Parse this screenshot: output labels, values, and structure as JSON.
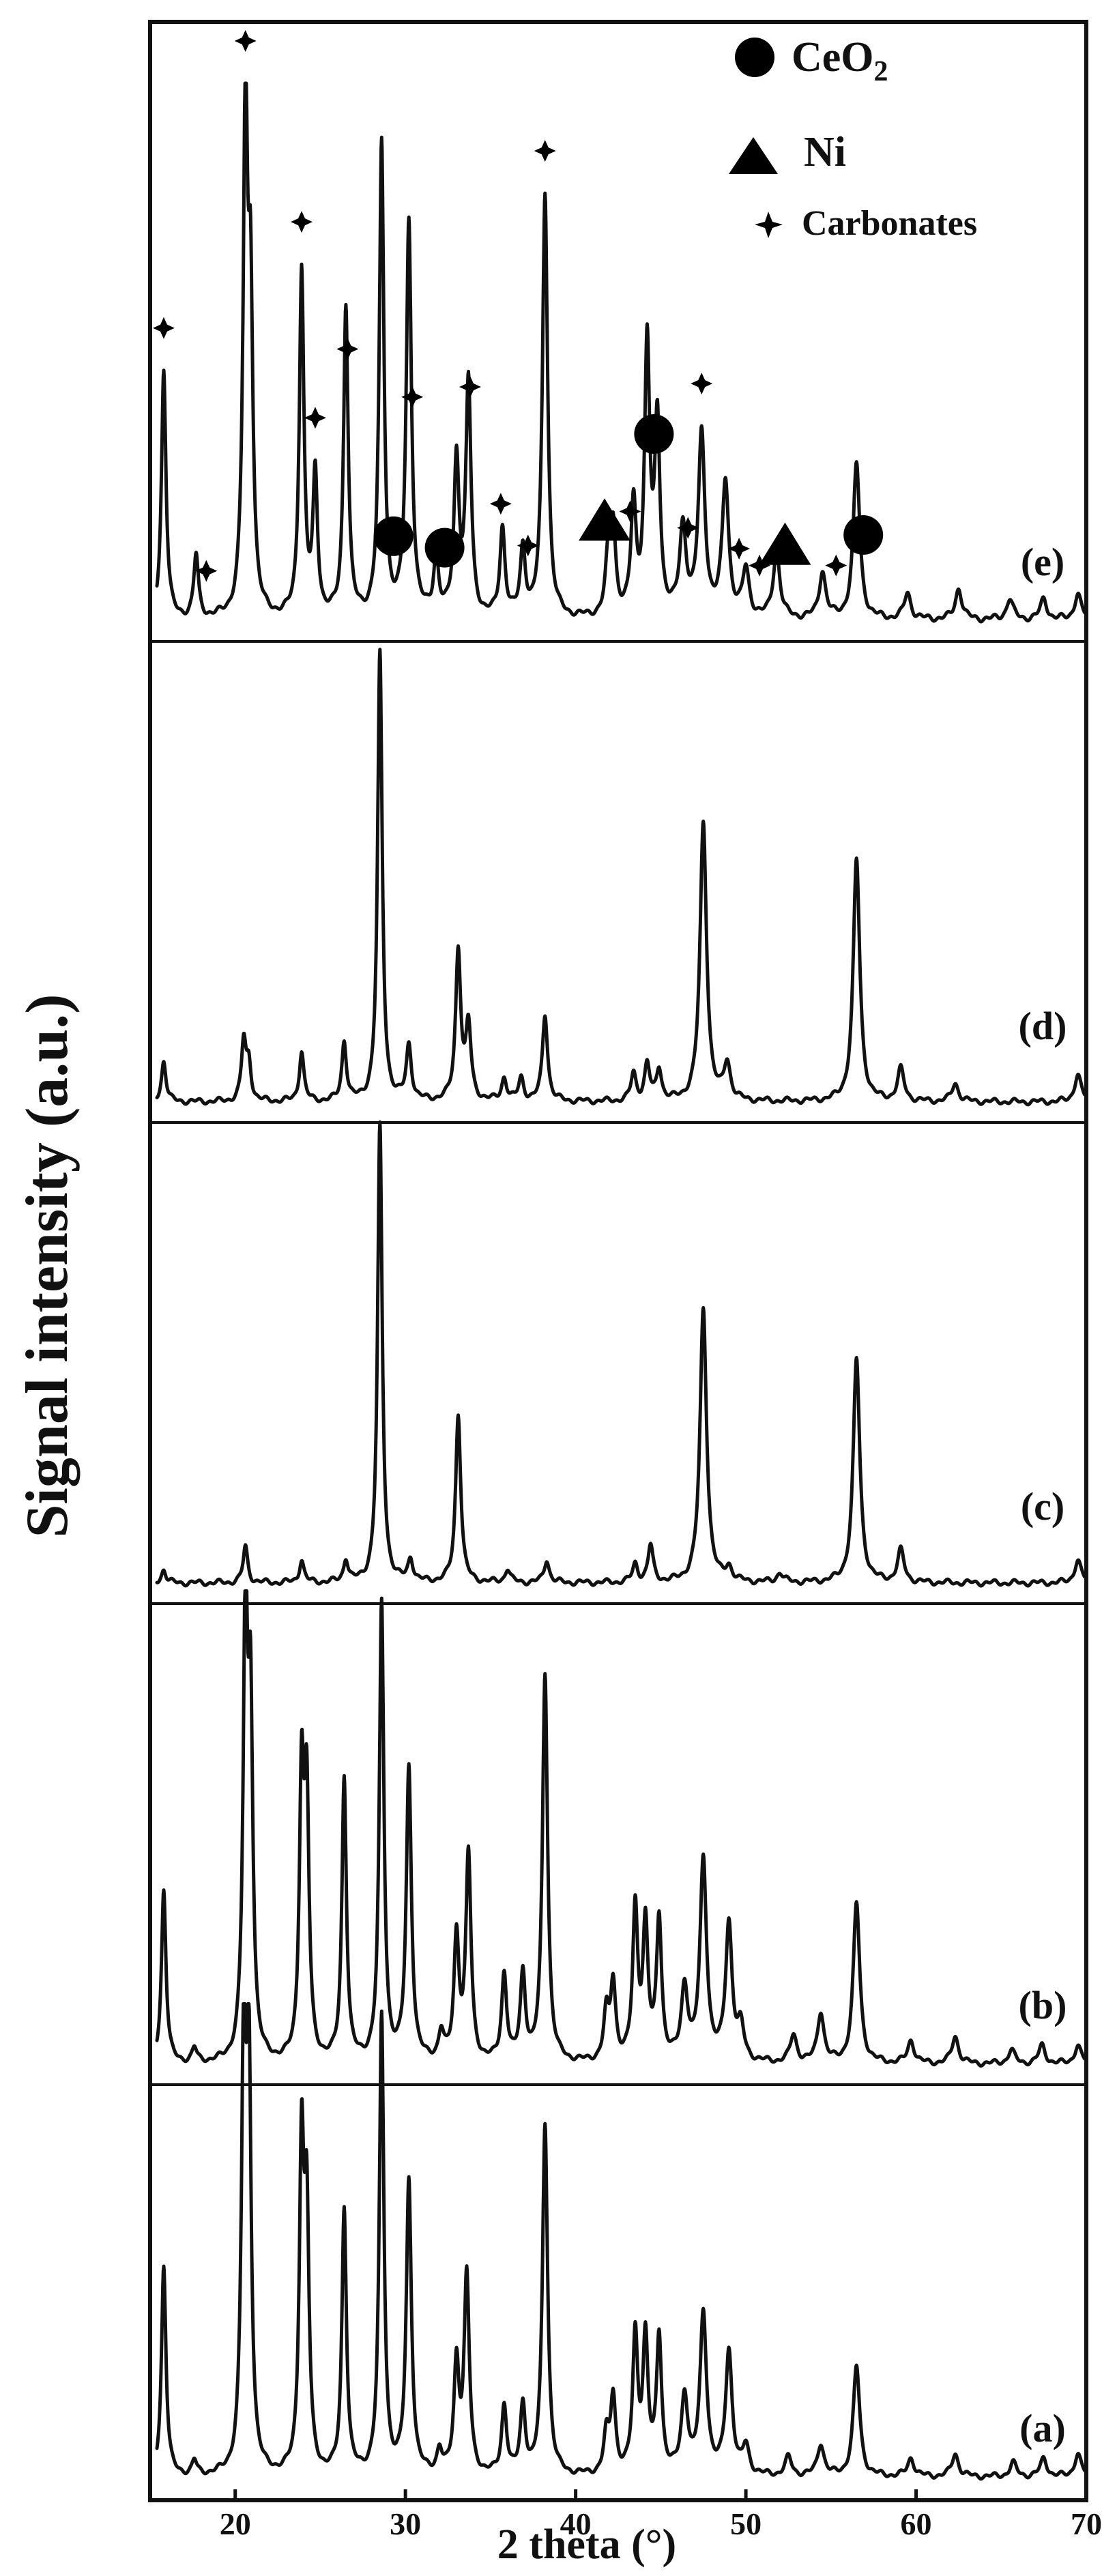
{
  "chart_data": {
    "type": "line",
    "title": "",
    "xlabel": "2 theta (°)",
    "ylabel": "Signal intensity (a.u.)",
    "xlim": [
      15,
      70
    ],
    "x_ticks": [
      20,
      30,
      40,
      50,
      60,
      70
    ],
    "y_units": "a.u.",
    "grid": false,
    "legend": {
      "placement": "top-right",
      "entries": [
        {
          "marker": "circle",
          "label": "CeO2"
        },
        {
          "marker": "triangle",
          "label": "Ni"
        },
        {
          "marker": "star",
          "label": "Carbonates"
        }
      ]
    },
    "panels": [
      {
        "label": "(e)",
        "annotation_positions": {
          "circle": [
            29.3,
            32.3,
            44.6,
            56.9
          ],
          "triangle": [
            41.7,
            52.3
          ],
          "star": [
            15.8,
            18.3,
            20.6,
            23.9,
            24.7,
            26.6,
            30.4,
            33.8,
            35.6,
            37.2,
            38.2,
            43.2,
            46.6,
            47.4,
            49.6,
            50.8,
            55.3
          ]
        },
        "peaks": [
          {
            "x": 15.8,
            "y": 0.48
          },
          {
            "x": 17.7,
            "y": 0.12
          },
          {
            "x": 20.6,
            "y": 0.96
          },
          {
            "x": 20.9,
            "y": 0.57
          },
          {
            "x": 23.9,
            "y": 0.67
          },
          {
            "x": 24.7,
            "y": 0.27
          },
          {
            "x": 26.5,
            "y": 0.6
          },
          {
            "x": 28.6,
            "y": 0.91
          },
          {
            "x": 30.2,
            "y": 0.76
          },
          {
            "x": 31.8,
            "y": 0.11
          },
          {
            "x": 33.0,
            "y": 0.3
          },
          {
            "x": 33.7,
            "y": 0.45
          },
          {
            "x": 35.7,
            "y": 0.17
          },
          {
            "x": 36.9,
            "y": 0.13
          },
          {
            "x": 38.2,
            "y": 0.82
          },
          {
            "x": 41.9,
            "y": 0.1
          },
          {
            "x": 42.2,
            "y": 0.17
          },
          {
            "x": 43.4,
            "y": 0.21
          },
          {
            "x": 44.2,
            "y": 0.52
          },
          {
            "x": 44.8,
            "y": 0.37
          },
          {
            "x": 46.3,
            "y": 0.17
          },
          {
            "x": 47.4,
            "y": 0.35
          },
          {
            "x": 48.8,
            "y": 0.26
          },
          {
            "x": 50.0,
            "y": 0.09
          },
          {
            "x": 51.8,
            "y": 0.13
          },
          {
            "x": 54.5,
            "y": 0.09
          },
          {
            "x": 56.5,
            "y": 0.3
          },
          {
            "x": 59.5,
            "y": 0.05
          },
          {
            "x": 62.5,
            "y": 0.06
          },
          {
            "x": 65.5,
            "y": 0.04
          },
          {
            "x": 67.5,
            "y": 0.04
          },
          {
            "x": 69.5,
            "y": 0.05
          }
        ]
      },
      {
        "label": "(d)",
        "peaks": [
          {
            "x": 15.8,
            "y": 0.09
          },
          {
            "x": 20.5,
            "y": 0.13
          },
          {
            "x": 20.8,
            "y": 0.08
          },
          {
            "x": 23.9,
            "y": 0.11
          },
          {
            "x": 26.4,
            "y": 0.13
          },
          {
            "x": 28.5,
            "y": 0.98
          },
          {
            "x": 30.2,
            "y": 0.12
          },
          {
            "x": 33.1,
            "y": 0.33
          },
          {
            "x": 33.7,
            "y": 0.16
          },
          {
            "x": 35.8,
            "y": 0.05
          },
          {
            "x": 36.8,
            "y": 0.05
          },
          {
            "x": 38.2,
            "y": 0.19
          },
          {
            "x": 43.4,
            "y": 0.06
          },
          {
            "x": 44.2,
            "y": 0.08
          },
          {
            "x": 44.9,
            "y": 0.07
          },
          {
            "x": 47.5,
            "y": 0.61
          },
          {
            "x": 48.9,
            "y": 0.08
          },
          {
            "x": 56.5,
            "y": 0.53
          },
          {
            "x": 59.1,
            "y": 0.07
          },
          {
            "x": 62.3,
            "y": 0.04
          },
          {
            "x": 69.5,
            "y": 0.06
          }
        ]
      },
      {
        "label": "(c)",
        "peaks": [
          {
            "x": 15.8,
            "y": 0.03
          },
          {
            "x": 20.6,
            "y": 0.08
          },
          {
            "x": 23.9,
            "y": 0.05
          },
          {
            "x": 26.5,
            "y": 0.05
          },
          {
            "x": 28.5,
            "y": 1.0
          },
          {
            "x": 30.3,
            "y": 0.05
          },
          {
            "x": 33.1,
            "y": 0.37
          },
          {
            "x": 36.0,
            "y": 0.03
          },
          {
            "x": 38.3,
            "y": 0.05
          },
          {
            "x": 43.5,
            "y": 0.04
          },
          {
            "x": 44.4,
            "y": 0.08
          },
          {
            "x": 47.5,
            "y": 0.6
          },
          {
            "x": 49.0,
            "y": 0.03
          },
          {
            "x": 52.0,
            "y": 0.02
          },
          {
            "x": 56.5,
            "y": 0.49
          },
          {
            "x": 59.1,
            "y": 0.07
          },
          {
            "x": 69.5,
            "y": 0.05
          }
        ]
      },
      {
        "label": "(b)",
        "peaks": [
          {
            "x": 15.8,
            "y": 0.38
          },
          {
            "x": 17.6,
            "y": 0.03
          },
          {
            "x": 20.6,
            "y": 0.96
          },
          {
            "x": 20.9,
            "y": 0.72
          },
          {
            "x": 23.9,
            "y": 0.6
          },
          {
            "x": 24.2,
            "y": 0.55
          },
          {
            "x": 26.4,
            "y": 0.62
          },
          {
            "x": 28.6,
            "y": 1.0
          },
          {
            "x": 30.2,
            "y": 0.64
          },
          {
            "x": 32.1,
            "y": 0.06
          },
          {
            "x": 33.0,
            "y": 0.27
          },
          {
            "x": 33.7,
            "y": 0.45
          },
          {
            "x": 35.8,
            "y": 0.19
          },
          {
            "x": 36.9,
            "y": 0.19
          },
          {
            "x": 38.2,
            "y": 0.85
          },
          {
            "x": 41.8,
            "y": 0.1
          },
          {
            "x": 42.2,
            "y": 0.17
          },
          {
            "x": 43.5,
            "y": 0.33
          },
          {
            "x": 44.1,
            "y": 0.29
          },
          {
            "x": 44.9,
            "y": 0.31
          },
          {
            "x": 46.4,
            "y": 0.16
          },
          {
            "x": 47.5,
            "y": 0.44
          },
          {
            "x": 49.0,
            "y": 0.3
          },
          {
            "x": 49.7,
            "y": 0.07
          },
          {
            "x": 52.8,
            "y": 0.06
          },
          {
            "x": 54.4,
            "y": 0.11
          },
          {
            "x": 56.5,
            "y": 0.35
          },
          {
            "x": 59.7,
            "y": 0.05
          },
          {
            "x": 62.3,
            "y": 0.06
          },
          {
            "x": 65.6,
            "y": 0.03
          },
          {
            "x": 67.4,
            "y": 0.04
          },
          {
            "x": 69.5,
            "y": 0.04
          }
        ]
      },
      {
        "label": "(a)",
        "peaks": [
          {
            "x": 15.8,
            "y": 0.46
          },
          {
            "x": 17.6,
            "y": 0.03
          },
          {
            "x": 20.5,
            "y": 0.91
          },
          {
            "x": 20.8,
            "y": 0.86
          },
          {
            "x": 23.9,
            "y": 0.7
          },
          {
            "x": 24.2,
            "y": 0.54
          },
          {
            "x": 26.4,
            "y": 0.58
          },
          {
            "x": 28.6,
            "y": 1.0
          },
          {
            "x": 30.2,
            "y": 0.64
          },
          {
            "x": 32.0,
            "y": 0.05
          },
          {
            "x": 33.0,
            "y": 0.24
          },
          {
            "x": 33.6,
            "y": 0.43
          },
          {
            "x": 35.8,
            "y": 0.15
          },
          {
            "x": 36.9,
            "y": 0.15
          },
          {
            "x": 38.2,
            "y": 0.77
          },
          {
            "x": 41.8,
            "y": 0.08
          },
          {
            "x": 42.2,
            "y": 0.17
          },
          {
            "x": 43.5,
            "y": 0.3
          },
          {
            "x": 44.1,
            "y": 0.29
          },
          {
            "x": 44.9,
            "y": 0.3
          },
          {
            "x": 46.4,
            "y": 0.17
          },
          {
            "x": 47.5,
            "y": 0.35
          },
          {
            "x": 49.0,
            "y": 0.27
          },
          {
            "x": 50.0,
            "y": 0.06
          },
          {
            "x": 52.5,
            "y": 0.04
          },
          {
            "x": 54.4,
            "y": 0.07
          },
          {
            "x": 56.5,
            "y": 0.24
          },
          {
            "x": 59.7,
            "y": 0.04
          },
          {
            "x": 62.3,
            "y": 0.05
          },
          {
            "x": 65.7,
            "y": 0.03
          },
          {
            "x": 67.5,
            "y": 0.04
          },
          {
            "x": 69.5,
            "y": 0.05
          }
        ]
      }
    ]
  }
}
